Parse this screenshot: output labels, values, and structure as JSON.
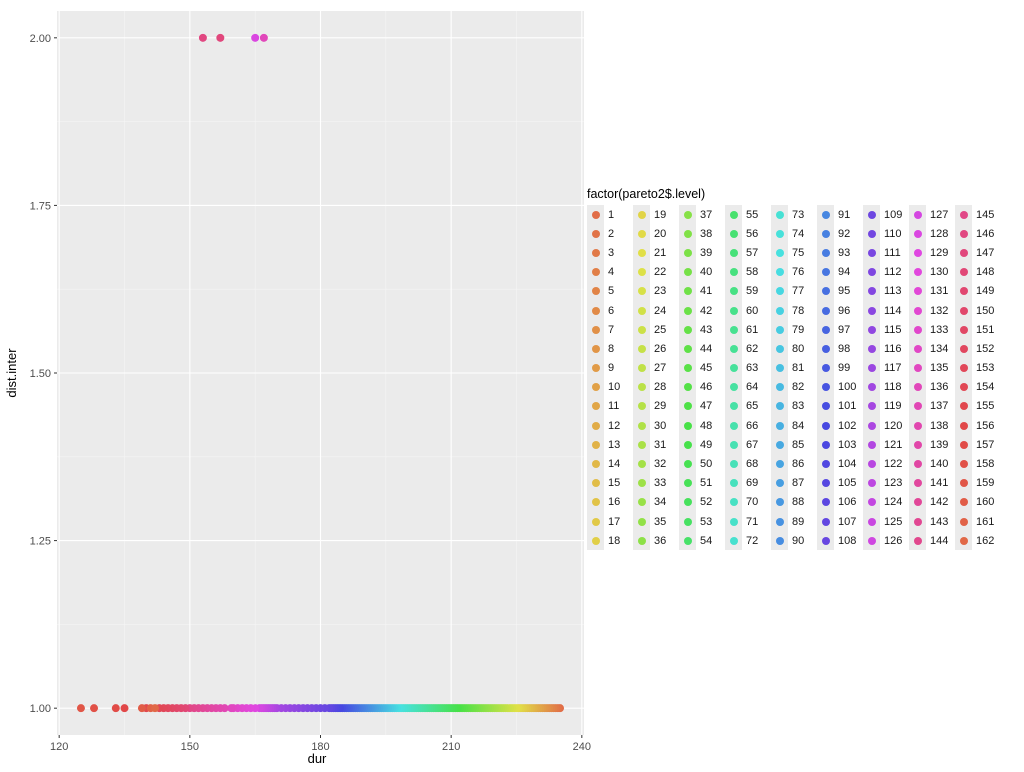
{
  "chart_data": {
    "type": "scatter",
    "xlabel": "dur",
    "ylabel": "dist.inter",
    "xlim": [
      119.5,
      240.5
    ],
    "ylim": [
      0.96,
      2.04
    ],
    "x_ticks": [
      120,
      150,
      180,
      210,
      240
    ],
    "y_ticks": [
      "1.00",
      "1.25",
      "1.50",
      "1.75",
      "2.00"
    ],
    "y_tick_values": [
      1.0,
      1.25,
      1.5,
      1.75,
      2.0
    ],
    "grid": true,
    "legend_title": "factor(pareto2$.level)",
    "legend_placement": "right",
    "legend_levels": 162,
    "points": [
      {
        "x": 235,
        "y": 1,
        "level": 1
      },
      {
        "x": 234.5,
        "y": 1,
        "level": 2
      },
      {
        "x": 234,
        "y": 1,
        "level": 3
      },
      {
        "x": 233.5,
        "y": 1,
        "level": 4
      },
      {
        "x": 233,
        "y": 1,
        "level": 5
      },
      {
        "x": 232.5,
        "y": 1,
        "level": 6
      },
      {
        "x": 232,
        "y": 1,
        "level": 7
      },
      {
        "x": 231.5,
        "y": 1,
        "level": 8
      },
      {
        "x": 231,
        "y": 1,
        "level": 9
      },
      {
        "x": 230.5,
        "y": 1,
        "level": 10
      },
      {
        "x": 230,
        "y": 1,
        "level": 11
      },
      {
        "x": 229.5,
        "y": 1,
        "level": 12
      },
      {
        "x": 229,
        "y": 1,
        "level": 13
      },
      {
        "x": 228.5,
        "y": 1,
        "level": 14
      },
      {
        "x": 228,
        "y": 1,
        "level": 15
      },
      {
        "x": 227.5,
        "y": 1,
        "level": 16
      },
      {
        "x": 227,
        "y": 1,
        "level": 17
      },
      {
        "x": 226.5,
        "y": 1,
        "level": 18
      },
      {
        "x": 226,
        "y": 1,
        "level": 19
      },
      {
        "x": 225.5,
        "y": 1,
        "level": 20
      },
      {
        "x": 225,
        "y": 1,
        "level": 21
      },
      {
        "x": 224.5,
        "y": 1,
        "level": 22
      },
      {
        "x": 224,
        "y": 1,
        "level": 23
      },
      {
        "x": 223.5,
        "y": 1,
        "level": 24
      },
      {
        "x": 223,
        "y": 1,
        "level": 25
      },
      {
        "x": 222.5,
        "y": 1,
        "level": 26
      },
      {
        "x": 222,
        "y": 1,
        "level": 27
      },
      {
        "x": 221.5,
        "y": 1,
        "level": 28
      },
      {
        "x": 221,
        "y": 1,
        "level": 29
      },
      {
        "x": 220.5,
        "y": 1,
        "level": 30
      },
      {
        "x": 220,
        "y": 1,
        "level": 31
      },
      {
        "x": 219.5,
        "y": 1,
        "level": 32
      },
      {
        "x": 219,
        "y": 1,
        "level": 33
      },
      {
        "x": 218.5,
        "y": 1,
        "level": 34
      },
      {
        "x": 218,
        "y": 1,
        "level": 35
      },
      {
        "x": 217.5,
        "y": 1,
        "level": 36
      },
      {
        "x": 217,
        "y": 1,
        "level": 37
      },
      {
        "x": 216.5,
        "y": 1,
        "level": 38
      },
      {
        "x": 216,
        "y": 1,
        "level": 39
      },
      {
        "x": 215.5,
        "y": 1,
        "level": 40
      },
      {
        "x": 215,
        "y": 1,
        "level": 41
      },
      {
        "x": 214.5,
        "y": 1,
        "level": 42
      },
      {
        "x": 214,
        "y": 1,
        "level": 43
      },
      {
        "x": 213.5,
        "y": 1,
        "level": 44
      },
      {
        "x": 213,
        "y": 1,
        "level": 45
      },
      {
        "x": 212.5,
        "y": 1,
        "level": 46
      },
      {
        "x": 212,
        "y": 1,
        "level": 47
      },
      {
        "x": 211.5,
        "y": 1,
        "level": 48
      },
      {
        "x": 211,
        "y": 1,
        "level": 49
      },
      {
        "x": 210.5,
        "y": 1,
        "level": 50
      },
      {
        "x": 210,
        "y": 1,
        "level": 51
      },
      {
        "x": 209.5,
        "y": 1,
        "level": 52
      },
      {
        "x": 209,
        "y": 1,
        "level": 53
      },
      {
        "x": 208.5,
        "y": 1,
        "level": 54
      },
      {
        "x": 208,
        "y": 1,
        "level": 55
      },
      {
        "x": 207.5,
        "y": 1,
        "level": 56
      },
      {
        "x": 207,
        "y": 1,
        "level": 57
      },
      {
        "x": 206.5,
        "y": 1,
        "level": 58
      },
      {
        "x": 206,
        "y": 1,
        "level": 59
      },
      {
        "x": 205.5,
        "y": 1,
        "level": 60
      },
      {
        "x": 205,
        "y": 1,
        "level": 61
      },
      {
        "x": 204.5,
        "y": 1,
        "level": 62
      },
      {
        "x": 204,
        "y": 1,
        "level": 63
      },
      {
        "x": 203.5,
        "y": 1,
        "level": 64
      },
      {
        "x": 203,
        "y": 1,
        "level": 65
      },
      {
        "x": 202.5,
        "y": 1,
        "level": 66
      },
      {
        "x": 202,
        "y": 1,
        "level": 67
      },
      {
        "x": 201.5,
        "y": 1,
        "level": 68
      },
      {
        "x": 201,
        "y": 1,
        "level": 69
      },
      {
        "x": 200.5,
        "y": 1,
        "level": 70
      },
      {
        "x": 200,
        "y": 1,
        "level": 71
      },
      {
        "x": 199.5,
        "y": 1,
        "level": 72
      },
      {
        "x": 199,
        "y": 1,
        "level": 73
      },
      {
        "x": 198.5,
        "y": 1,
        "level": 74
      },
      {
        "x": 198,
        "y": 1,
        "level": 75
      },
      {
        "x": 197.5,
        "y": 1,
        "level": 76
      },
      {
        "x": 197,
        "y": 1,
        "level": 77
      },
      {
        "x": 196.5,
        "y": 1,
        "level": 78
      },
      {
        "x": 196,
        "y": 1,
        "level": 79
      },
      {
        "x": 195.5,
        "y": 1,
        "level": 80
      },
      {
        "x": 195,
        "y": 1,
        "level": 81
      },
      {
        "x": 194.5,
        "y": 1,
        "level": 82
      },
      {
        "x": 194,
        "y": 1,
        "level": 83
      },
      {
        "x": 193.5,
        "y": 1,
        "level": 84
      },
      {
        "x": 193,
        "y": 1,
        "level": 85
      },
      {
        "x": 192.5,
        "y": 1,
        "level": 86
      },
      {
        "x": 192,
        "y": 1,
        "level": 87
      },
      {
        "x": 191.5,
        "y": 1,
        "level": 88
      },
      {
        "x": 191,
        "y": 1,
        "level": 89
      },
      {
        "x": 190.5,
        "y": 1,
        "level": 90
      },
      {
        "x": 190,
        "y": 1,
        "level": 91
      },
      {
        "x": 189.5,
        "y": 1,
        "level": 92
      },
      {
        "x": 189,
        "y": 1,
        "level": 93
      },
      {
        "x": 188.5,
        "y": 1,
        "level": 94
      },
      {
        "x": 188,
        "y": 1,
        "level": 95
      },
      {
        "x": 187.5,
        "y": 1,
        "level": 96
      },
      {
        "x": 187,
        "y": 1,
        "level": 97
      },
      {
        "x": 186.5,
        "y": 1,
        "level": 98
      },
      {
        "x": 186,
        "y": 1,
        "level": 99
      },
      {
        "x": 185.5,
        "y": 1,
        "level": 100
      },
      {
        "x": 185,
        "y": 1,
        "level": 101
      },
      {
        "x": 184.5,
        "y": 1,
        "level": 102
      },
      {
        "x": 184,
        "y": 1,
        "level": 103
      },
      {
        "x": 183.5,
        "y": 1,
        "level": 104
      },
      {
        "x": 183,
        "y": 1,
        "level": 105
      },
      {
        "x": 182.5,
        "y": 1,
        "level": 106
      },
      {
        "x": 182,
        "y": 1,
        "level": 107
      },
      {
        "x": 181,
        "y": 1,
        "level": 108
      },
      {
        "x": 180,
        "y": 1,
        "level": 109
      },
      {
        "x": 179,
        "y": 1,
        "level": 110
      },
      {
        "x": 178,
        "y": 1,
        "level": 111
      },
      {
        "x": 177,
        "y": 1,
        "level": 112
      },
      {
        "x": 176,
        "y": 1,
        "level": 113
      },
      {
        "x": 175,
        "y": 1,
        "level": 114
      },
      {
        "x": 174,
        "y": 1,
        "level": 115
      },
      {
        "x": 173,
        "y": 1,
        "level": 116
      },
      {
        "x": 172,
        "y": 1,
        "level": 117
      },
      {
        "x": 171,
        "y": 1,
        "level": 118
      },
      {
        "x": 170,
        "y": 1,
        "level": 119
      },
      {
        "x": 169.5,
        "y": 1,
        "level": 120
      },
      {
        "x": 169,
        "y": 1,
        "level": 121
      },
      {
        "x": 168.5,
        "y": 1,
        "level": 122
      },
      {
        "x": 168,
        "y": 1,
        "level": 123
      },
      {
        "x": 167.5,
        "y": 1,
        "level": 124
      },
      {
        "x": 167,
        "y": 1,
        "level": 125
      },
      {
        "x": 166.5,
        "y": 1,
        "level": 126
      },
      {
        "x": 166,
        "y": 1,
        "level": 127
      },
      {
        "x": 165,
        "y": 2,
        "level": 128
      },
      {
        "x": 165,
        "y": 1,
        "level": 129
      },
      {
        "x": 164,
        "y": 1,
        "level": 130
      },
      {
        "x": 163,
        "y": 1,
        "level": 131
      },
      {
        "x": 162,
        "y": 1,
        "level": 132
      },
      {
        "x": 161,
        "y": 1,
        "level": 133
      },
      {
        "x": 160,
        "y": 1,
        "level": 134
      },
      {
        "x": 159.5,
        "y": 1,
        "level": 135
      },
      {
        "x": 167,
        "y": 2,
        "level": 136
      },
      {
        "x": 158,
        "y": 1,
        "level": 137
      },
      {
        "x": 157,
        "y": 1,
        "level": 138
      },
      {
        "x": 156,
        "y": 1,
        "level": 139
      },
      {
        "x": 155,
        "y": 1,
        "level": 140
      },
      {
        "x": 154,
        "y": 1,
        "level": 141
      },
      {
        "x": 153,
        "y": 1,
        "level": 142
      },
      {
        "x": 152,
        "y": 1,
        "level": 143
      },
      {
        "x": 151,
        "y": 1,
        "level": 144
      },
      {
        "x": 150,
        "y": 1,
        "level": 145
      },
      {
        "x": 153,
        "y": 2,
        "level": 146
      },
      {
        "x": 157,
        "y": 2,
        "level": 147
      },
      {
        "x": 149,
        "y": 1,
        "level": 148
      },
      {
        "x": 148,
        "y": 1,
        "level": 149
      },
      {
        "x": 147,
        "y": 1,
        "level": 150
      },
      {
        "x": 146,
        "y": 1,
        "level": 151
      },
      {
        "x": 145,
        "y": 1,
        "level": 152
      },
      {
        "x": 144,
        "y": 1,
        "level": 153
      },
      {
        "x": 143,
        "y": 1,
        "level": 154
      },
      {
        "x": 140,
        "y": 1,
        "level": 155
      },
      {
        "x": 135,
        "y": 1,
        "level": 156
      },
      {
        "x": 133,
        "y": 1,
        "level": 157
      },
      {
        "x": 128,
        "y": 1,
        "level": 158
      },
      {
        "x": 125,
        "y": 1,
        "level": 159
      },
      {
        "x": 139,
        "y": 1,
        "level": 160
      },
      {
        "x": 141,
        "y": 1,
        "level": 161
      },
      {
        "x": 142,
        "y": 1,
        "level": 162
      }
    ]
  }
}
